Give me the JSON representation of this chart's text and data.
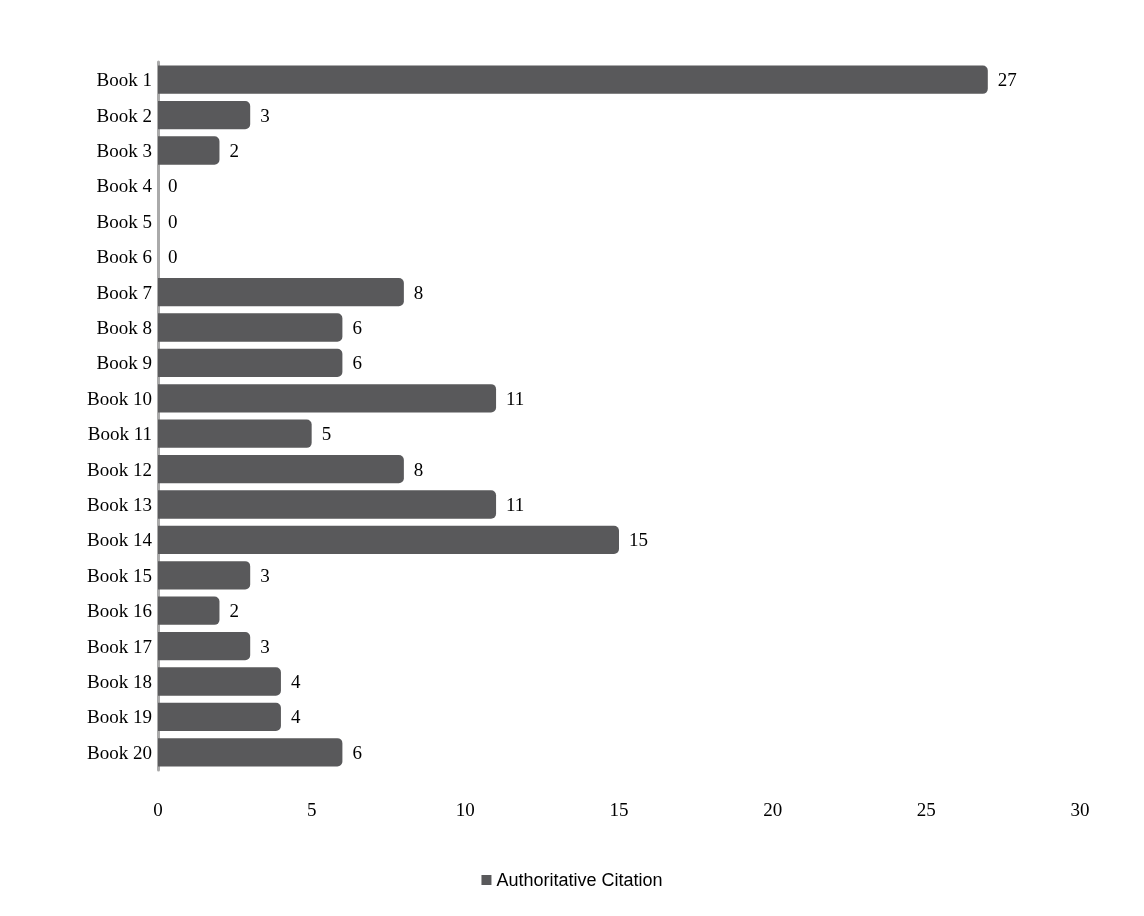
{
  "chart_data": {
    "type": "bar",
    "orientation": "horizontal",
    "categories": [
      "Book 1",
      "Book 2",
      "Book 3",
      "Book 4",
      "Book 5",
      "Book 6",
      "Book 7",
      "Book 8",
      "Book 9",
      "Book 10",
      "Book 11",
      "Book 12",
      "Book 13",
      "Book 14",
      "Book 15",
      "Book 16",
      "Book 17",
      "Book 18",
      "Book 19",
      "Book 20"
    ],
    "series": [
      {
        "name": "Authoritative Citation",
        "color": "#59595b",
        "values": [
          27,
          3,
          2,
          0,
          0,
          0,
          8,
          6,
          6,
          11,
          5,
          8,
          11,
          15,
          3,
          2,
          3,
          4,
          4,
          6
        ]
      }
    ],
    "xlim": [
      0,
      30
    ],
    "xticks": [
      0,
      5,
      10,
      15,
      20,
      25,
      30
    ],
    "grid": false,
    "legend": "bottom",
    "data_labels": true
  }
}
